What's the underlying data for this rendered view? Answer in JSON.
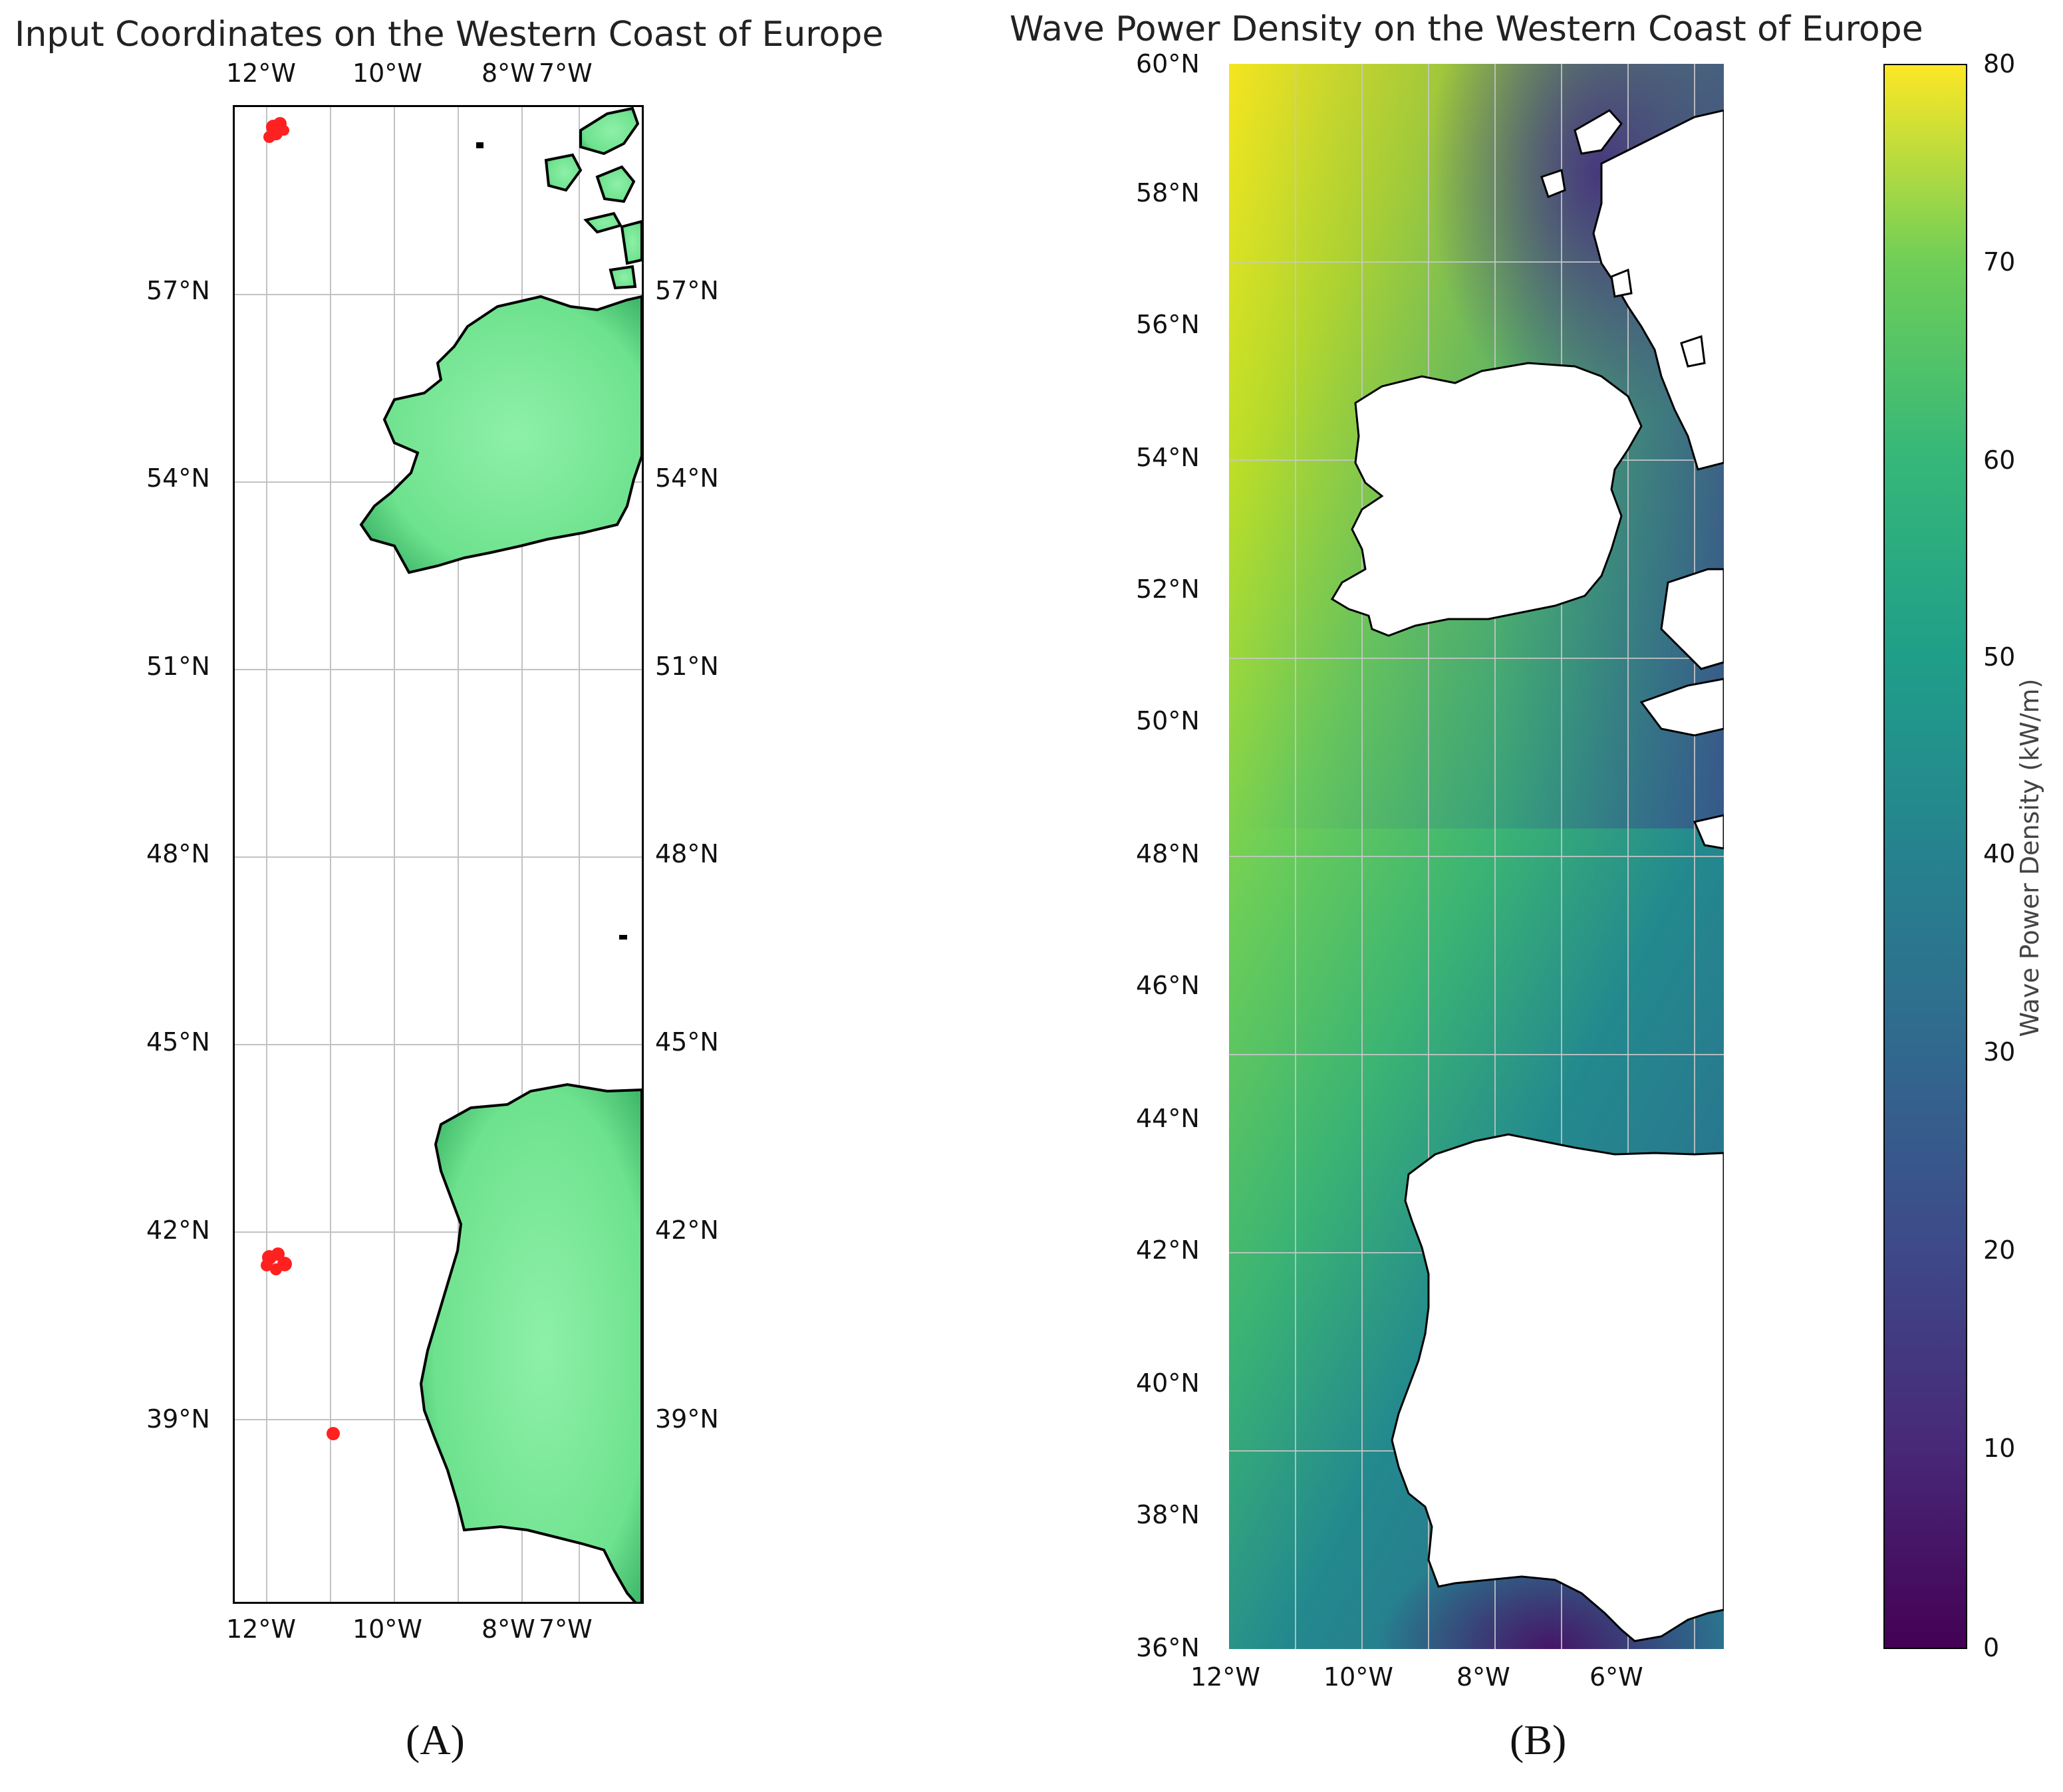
{
  "panels": {
    "A": {
      "label": "(A)",
      "title": "Input Coordinates on the Western Coast of Europe",
      "lon_ticks": [
        "12°W",
        "10°W",
        "8°W",
        "7°W"
      ],
      "lat_ticks": [
        "57°N",
        "54°N",
        "51°N",
        "48°N",
        "45°N",
        "42°N",
        "39°N"
      ],
      "land_color": "#6ee28e",
      "point_color": "#ff2020",
      "point_clusters": [
        {
          "lon": -11.95,
          "lat": 58.0
        },
        {
          "lon": -12.0,
          "lat": 43.0
        },
        {
          "lon": -10.95,
          "lat": 38.9
        }
      ]
    },
    "B": {
      "label": "(B)",
      "title": "Wave Power Density on the Western Coast of Europe",
      "lon_ticks": [
        "12°W",
        "10°W",
        "8°W",
        "6°W"
      ],
      "lat_ticks": [
        "60°N",
        "58°N",
        "56°N",
        "54°N",
        "52°N",
        "50°N",
        "48°N",
        "46°N",
        "44°N",
        "42°N",
        "40°N",
        "38°N",
        "36°N"
      ],
      "colorbar": {
        "label": "Wave Power Density (kW/m)",
        "ticks": [
          "80",
          "70",
          "60",
          "50",
          "40",
          "30",
          "20",
          "10",
          "0"
        ],
        "colormap": "viridis",
        "range": [
          0,
          80
        ]
      }
    }
  },
  "chart_data": [
    {
      "type": "scatter",
      "title": "Input Coordinates on the Western Coast of Europe",
      "x_range": [
        -12.5,
        -6.0
      ],
      "y_range": [
        36.0,
        59.5
      ],
      "points": [
        {
          "x": -11.95,
          "y": 58.0
        },
        {
          "x": -12.0,
          "y": 43.0
        },
        {
          "x": -10.95,
          "y": 38.9
        }
      ],
      "grid": true
    },
    {
      "type": "heatmap",
      "title": "Wave Power Density on the Western Coast of Europe",
      "x_range": [
        -12,
        -4.5
      ],
      "y_range": [
        36,
        60
      ],
      "value_range": [
        0,
        80
      ],
      "grid": true
    }
  ]
}
